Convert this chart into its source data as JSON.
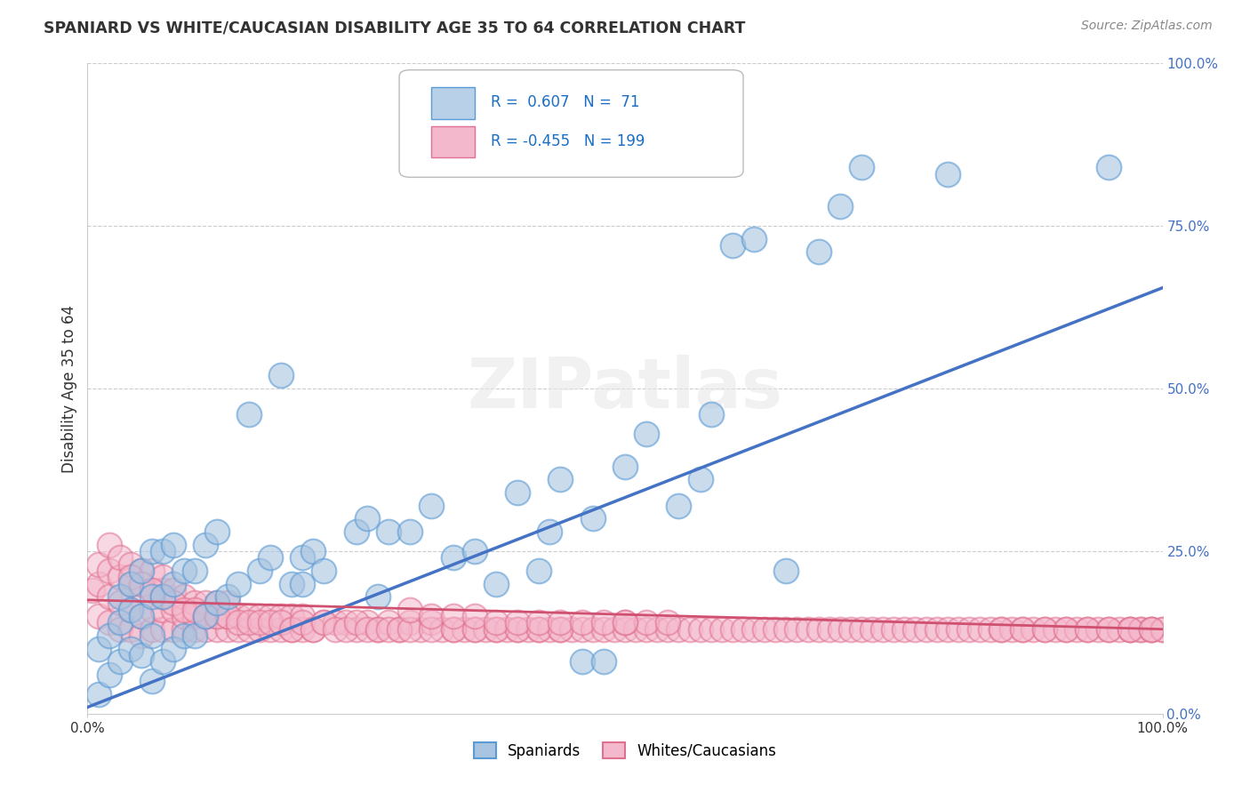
{
  "title": "SPANIARD VS WHITE/CAUCASIAN DISABILITY AGE 35 TO 64 CORRELATION CHART",
  "source": "Source: ZipAtlas.com",
  "ylabel": "Disability Age 35 to 64",
  "xlim": [
    0.0,
    1.0
  ],
  "ylim": [
    0.0,
    1.0
  ],
  "yticks": [
    0.0,
    0.25,
    0.5,
    0.75,
    1.0
  ],
  "ytick_labels": [
    "0.0%",
    "25.0%",
    "50.0%",
    "75.0%",
    "100.0%"
  ],
  "spaniard_R": 0.607,
  "spaniard_N": 71,
  "white_R": -0.455,
  "white_N": 199,
  "spaniard_color": "#a8c4e0",
  "spaniard_edge_color": "#5b9bd5",
  "spaniard_line_color": "#4472c4",
  "white_color": "#f4b8cc",
  "white_edge_color": "#e07090",
  "white_line_color": "#d05070",
  "legend_color_blue": "#b8d0e8",
  "legend_color_pink": "#f4b8cc",
  "background_color": "#ffffff",
  "grid_color": "#cccccc",
  "blue_line_x": [
    0.0,
    1.0
  ],
  "blue_line_y": [
    0.01,
    0.655
  ],
  "pink_line_x": [
    0.0,
    1.0
  ],
  "pink_line_y": [
    0.175,
    0.13
  ],
  "spaniard_dots_x": [
    0.01,
    0.01,
    0.02,
    0.02,
    0.03,
    0.03,
    0.03,
    0.04,
    0.04,
    0.04,
    0.05,
    0.05,
    0.05,
    0.06,
    0.06,
    0.06,
    0.06,
    0.07,
    0.07,
    0.07,
    0.08,
    0.08,
    0.08,
    0.09,
    0.09,
    0.1,
    0.1,
    0.11,
    0.11,
    0.12,
    0.12,
    0.13,
    0.14,
    0.15,
    0.16,
    0.17,
    0.18,
    0.19,
    0.2,
    0.2,
    0.21,
    0.22,
    0.25,
    0.26,
    0.27,
    0.28,
    0.3,
    0.32,
    0.34,
    0.36,
    0.38,
    0.4,
    0.42,
    0.43,
    0.44,
    0.46,
    0.47,
    0.48,
    0.5,
    0.52,
    0.55,
    0.57,
    0.58,
    0.6,
    0.62,
    0.65,
    0.68,
    0.7,
    0.72,
    0.8,
    0.95
  ],
  "spaniard_dots_y": [
    0.03,
    0.1,
    0.06,
    0.12,
    0.08,
    0.14,
    0.18,
    0.1,
    0.16,
    0.2,
    0.09,
    0.15,
    0.22,
    0.05,
    0.12,
    0.18,
    0.25,
    0.08,
    0.18,
    0.25,
    0.1,
    0.2,
    0.26,
    0.12,
    0.22,
    0.12,
    0.22,
    0.15,
    0.26,
    0.17,
    0.28,
    0.18,
    0.2,
    0.46,
    0.22,
    0.24,
    0.52,
    0.2,
    0.24,
    0.2,
    0.25,
    0.22,
    0.28,
    0.3,
    0.18,
    0.28,
    0.28,
    0.32,
    0.24,
    0.25,
    0.2,
    0.34,
    0.22,
    0.28,
    0.36,
    0.08,
    0.3,
    0.08,
    0.38,
    0.43,
    0.32,
    0.36,
    0.46,
    0.72,
    0.73,
    0.22,
    0.71,
    0.78,
    0.84,
    0.83,
    0.84
  ],
  "white_dots_x": [
    0.005,
    0.01,
    0.01,
    0.01,
    0.02,
    0.02,
    0.02,
    0.02,
    0.03,
    0.03,
    0.03,
    0.03,
    0.04,
    0.04,
    0.04,
    0.04,
    0.05,
    0.05,
    0.05,
    0.05,
    0.06,
    0.06,
    0.06,
    0.06,
    0.07,
    0.07,
    0.07,
    0.07,
    0.08,
    0.08,
    0.08,
    0.09,
    0.09,
    0.09,
    0.1,
    0.1,
    0.1,
    0.11,
    0.11,
    0.11,
    0.12,
    0.12,
    0.12,
    0.13,
    0.13,
    0.13,
    0.14,
    0.14,
    0.15,
    0.15,
    0.16,
    0.16,
    0.17,
    0.17,
    0.18,
    0.18,
    0.19,
    0.19,
    0.2,
    0.2,
    0.21,
    0.22,
    0.23,
    0.24,
    0.25,
    0.26,
    0.27,
    0.28,
    0.29,
    0.3,
    0.31,
    0.32,
    0.33,
    0.34,
    0.35,
    0.36,
    0.37,
    0.38,
    0.39,
    0.4,
    0.41,
    0.42,
    0.43,
    0.44,
    0.45,
    0.46,
    0.47,
    0.48,
    0.49,
    0.5,
    0.51,
    0.52,
    0.53,
    0.54,
    0.55,
    0.56,
    0.57,
    0.58,
    0.59,
    0.6,
    0.61,
    0.62,
    0.63,
    0.64,
    0.65,
    0.66,
    0.67,
    0.68,
    0.69,
    0.7,
    0.71,
    0.72,
    0.73,
    0.74,
    0.75,
    0.76,
    0.77,
    0.78,
    0.79,
    0.8,
    0.81,
    0.82,
    0.83,
    0.84,
    0.85,
    0.86,
    0.87,
    0.88,
    0.89,
    0.9,
    0.91,
    0.92,
    0.93,
    0.94,
    0.95,
    0.96,
    0.97,
    0.97,
    0.98,
    0.98,
    0.99,
    0.99,
    1.0,
    1.0,
    0.04,
    0.05,
    0.06,
    0.07,
    0.08,
    0.09,
    0.1,
    0.11,
    0.12,
    0.13,
    0.14,
    0.15,
    0.16,
    0.17,
    0.18,
    0.19,
    0.2,
    0.21,
    0.22,
    0.23,
    0.24,
    0.25,
    0.26,
    0.27,
    0.28,
    0.29,
    0.3,
    0.32,
    0.34,
    0.36,
    0.38,
    0.4,
    0.42,
    0.44,
    0.85,
    0.87,
    0.89,
    0.91,
    0.93,
    0.95,
    0.97,
    0.99,
    0.5,
    0.52,
    0.54,
    0.3,
    0.32,
    0.34,
    0.36,
    0.38,
    0.4,
    0.42,
    0.44,
    0.46,
    0.48,
    0.5
  ],
  "white_dots_y": [
    0.19,
    0.15,
    0.2,
    0.23,
    0.14,
    0.18,
    0.22,
    0.26,
    0.13,
    0.17,
    0.21,
    0.24,
    0.13,
    0.16,
    0.2,
    0.23,
    0.12,
    0.15,
    0.19,
    0.22,
    0.13,
    0.16,
    0.19,
    0.22,
    0.13,
    0.16,
    0.19,
    0.21,
    0.13,
    0.16,
    0.19,
    0.13,
    0.15,
    0.18,
    0.13,
    0.15,
    0.17,
    0.13,
    0.15,
    0.17,
    0.13,
    0.15,
    0.17,
    0.13,
    0.15,
    0.17,
    0.13,
    0.15,
    0.13,
    0.15,
    0.13,
    0.15,
    0.13,
    0.15,
    0.13,
    0.15,
    0.13,
    0.15,
    0.13,
    0.15,
    0.13,
    0.14,
    0.14,
    0.14,
    0.13,
    0.14,
    0.13,
    0.14,
    0.13,
    0.14,
    0.13,
    0.14,
    0.13,
    0.13,
    0.13,
    0.13,
    0.13,
    0.13,
    0.13,
    0.13,
    0.13,
    0.13,
    0.13,
    0.13,
    0.13,
    0.13,
    0.13,
    0.13,
    0.13,
    0.13,
    0.13,
    0.13,
    0.13,
    0.13,
    0.13,
    0.13,
    0.13,
    0.13,
    0.13,
    0.13,
    0.13,
    0.13,
    0.13,
    0.13,
    0.13,
    0.13,
    0.13,
    0.13,
    0.13,
    0.13,
    0.13,
    0.13,
    0.13,
    0.13,
    0.13,
    0.13,
    0.13,
    0.13,
    0.13,
    0.13,
    0.13,
    0.13,
    0.13,
    0.13,
    0.13,
    0.13,
    0.13,
    0.13,
    0.13,
    0.13,
    0.13,
    0.13,
    0.13,
    0.13,
    0.13,
    0.13,
    0.13,
    0.13,
    0.13,
    0.13,
    0.13,
    0.13,
    0.13,
    0.13,
    0.21,
    0.2,
    0.19,
    0.18,
    0.17,
    0.16,
    0.16,
    0.15,
    0.15,
    0.15,
    0.14,
    0.14,
    0.14,
    0.14,
    0.14,
    0.13,
    0.14,
    0.13,
    0.14,
    0.13,
    0.13,
    0.14,
    0.13,
    0.13,
    0.13,
    0.13,
    0.13,
    0.13,
    0.13,
    0.13,
    0.13,
    0.13,
    0.13,
    0.13,
    0.13,
    0.13,
    0.13,
    0.13,
    0.13,
    0.13,
    0.13,
    0.13,
    0.14,
    0.14,
    0.14,
    0.16,
    0.15,
    0.15,
    0.15,
    0.14,
    0.14,
    0.14,
    0.14,
    0.14,
    0.14,
    0.14
  ]
}
